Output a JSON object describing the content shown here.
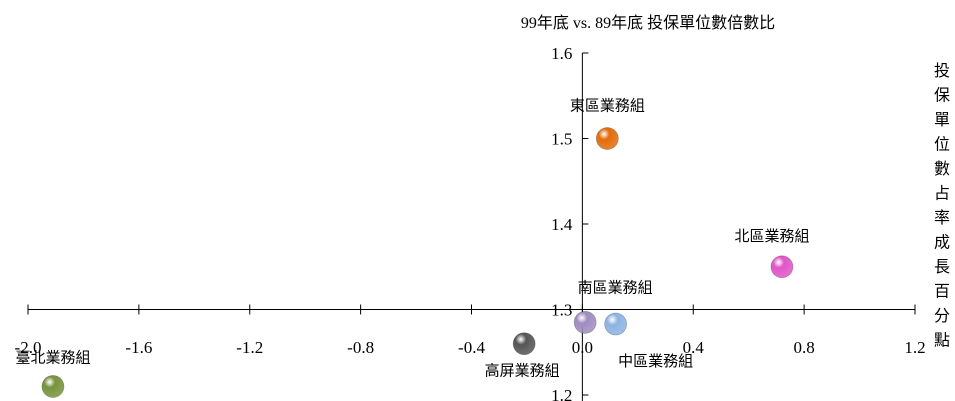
{
  "chart_data": {
    "type": "scatter",
    "title": "99年底 vs. 89年底 投保單位數倍數比",
    "xlabel": "投保單位數占率成長百分點",
    "ylabel": "",
    "xlim": [
      -2.0,
      1.2
    ],
    "ylim": [
      1.2,
      1.6
    ],
    "x_crosses_y_at": 1.3,
    "y_crosses_x_at": 0.0,
    "xticks": [
      "-2.0",
      "-1.6",
      "-1.2",
      "-0.8",
      "-0.4",
      "0.0",
      "0.4",
      "0.8",
      "1.2"
    ],
    "yticks": [
      "1.2",
      "1.3",
      "1.4",
      "1.5",
      "1.6"
    ],
    "grid": false,
    "points": [
      {
        "name": "東區業務組",
        "x": 0.09,
        "y": 1.5,
        "color": "#e36c0a"
      },
      {
        "name": "北區業務組",
        "x": 0.72,
        "y": 1.35,
        "color": "#e055c8"
      },
      {
        "name": "南區業務組",
        "x": 0.01,
        "y": 1.285,
        "color": "#a08cc0"
      },
      {
        "name": "中區業務組",
        "x": 0.12,
        "y": 1.283,
        "color": "#8db3e2"
      },
      {
        "name": "高屏業務組",
        "x": -0.21,
        "y": 1.26,
        "color": "#555555"
      },
      {
        "name": "臺北業務組",
        "x": -1.91,
        "y": 1.21,
        "color": "#77933c"
      }
    ]
  }
}
